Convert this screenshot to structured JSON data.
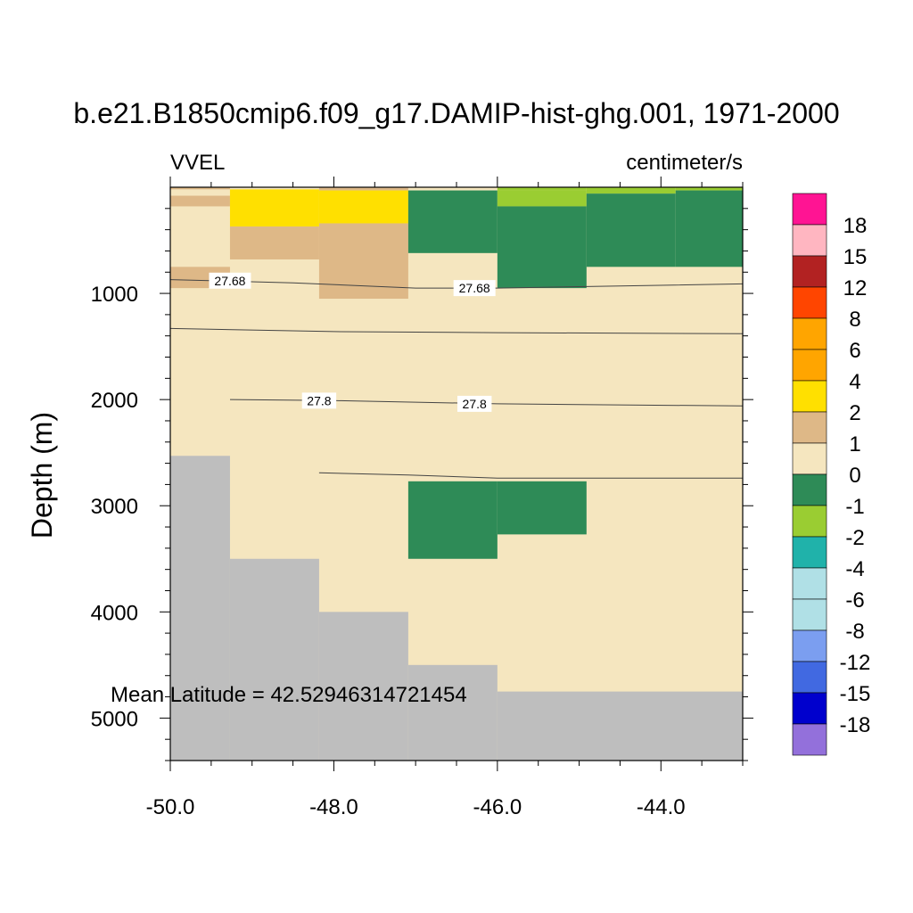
{
  "chart_data": {
    "type": "heatmap",
    "title": "b.e21.B1850cmip6.f09_g17.DAMIP-hist-ghg.001, 1971-2000",
    "variable_label": "VVEL",
    "units_label": "centimeter/s",
    "ylabel": "Depth (m)",
    "xlabel": "",
    "annotation": "Mean Latitude = 42.52946314721454",
    "xlim": [
      -50.0,
      -43.0
    ],
    "ylim": [
      5400,
      0
    ],
    "y_reversed": true,
    "x_ticks": [
      {
        "value": -50.0,
        "label": "-50.0"
      },
      {
        "value": -48.0,
        "label": "-48.0"
      },
      {
        "value": -46.0,
        "label": "-46.0"
      },
      {
        "value": -44.0,
        "label": "-44.0"
      }
    ],
    "y_ticks": [
      {
        "value": 1000,
        "label": "1000"
      },
      {
        "value": 2000,
        "label": "2000"
      },
      {
        "value": 3000,
        "label": "3000"
      },
      {
        "value": 4000,
        "label": "4000"
      },
      {
        "value": 5000,
        "label": "5000"
      }
    ],
    "background_color": "#f5e6bf",
    "land_color": "#bebebe",
    "cells": [
      {
        "x0": -50.0,
        "x1": -49.27,
        "y0": 0,
        "y1": 20,
        "color": "#deb887"
      },
      {
        "x0": -50.0,
        "x1": -49.27,
        "y0": 80,
        "y1": 180,
        "color": "#deb887"
      },
      {
        "x0": -50.0,
        "x1": -49.27,
        "y0": 750,
        "y1": 950,
        "color": "#deb887"
      },
      {
        "x0": -49.27,
        "x1": -48.18,
        "y0": 20,
        "y1": 370,
        "color": "#ffe000"
      },
      {
        "x0": -49.27,
        "x1": -48.18,
        "y0": 370,
        "y1": 680,
        "color": "#deb887"
      },
      {
        "x0": -48.18,
        "x1": -47.09,
        "y0": 0,
        "y1": 30,
        "color": "#deb887"
      },
      {
        "x0": -48.18,
        "x1": -47.09,
        "y0": 30,
        "y1": 340,
        "color": "#ffe000"
      },
      {
        "x0": -48.18,
        "x1": -47.09,
        "y0": 340,
        "y1": 1050,
        "color": "#deb887"
      },
      {
        "x0": -47.09,
        "x1": -46.0,
        "y0": 30,
        "y1": 620,
        "color": "#2e8b57"
      },
      {
        "x0": -46.0,
        "x1": -44.91,
        "y0": 0,
        "y1": 30,
        "color": "#9acd32"
      },
      {
        "x0": -46.0,
        "x1": -44.91,
        "y0": 30,
        "y1": 180,
        "color": "#9acd32"
      },
      {
        "x0": -46.0,
        "x1": -44.91,
        "y0": 180,
        "y1": 950,
        "color": "#2e8b57"
      },
      {
        "x0": -44.91,
        "x1": -43.82,
        "y0": 0,
        "y1": 60,
        "color": "#9acd32"
      },
      {
        "x0": -44.91,
        "x1": -43.82,
        "y0": 60,
        "y1": 750,
        "color": "#2e8b57"
      },
      {
        "x0": -43.82,
        "x1": -43.0,
        "y0": 0,
        "y1": 30,
        "color": "#9acd32"
      },
      {
        "x0": -43.82,
        "x1": -43.0,
        "y0": 30,
        "y1": 750,
        "color": "#2e8b57"
      },
      {
        "x0": -47.09,
        "x1": -46.0,
        "y0": 2770,
        "y1": 3500,
        "color": "#2e8b57"
      },
      {
        "x0": -46.0,
        "x1": -44.91,
        "y0": 2770,
        "y1": 3270,
        "color": "#2e8b57"
      }
    ],
    "land_cells": [
      {
        "x0": -50.0,
        "x1": -49.27,
        "y0": 2530,
        "y1": 5400
      },
      {
        "x0": -49.27,
        "x1": -48.18,
        "y0": 3500,
        "y1": 5400
      },
      {
        "x0": -48.18,
        "x1": -47.09,
        "y0": 4000,
        "y1": 5400
      },
      {
        "x0": -47.09,
        "x1": -46.0,
        "y0": 4500,
        "y1": 5400
      },
      {
        "x0": -46.0,
        "x1": -43.0,
        "y0": 4750,
        "y1": 5400
      }
    ],
    "contours": [
      {
        "label": "27.68",
        "points": [
          [
            -50.0,
            870
          ],
          [
            -48.5,
            900
          ],
          [
            -47.0,
            950
          ],
          [
            -46.0,
            950
          ],
          [
            -44.5,
            930
          ],
          [
            -43.0,
            910
          ]
        ],
        "label_positions": [
          [
            -49.27,
            880
          ],
          [
            -46.28,
            950
          ]
        ]
      },
      {
        "label": "",
        "points": [
          [
            -50.0,
            1330
          ],
          [
            -48.0,
            1360
          ],
          [
            -46.0,
            1370
          ],
          [
            -43.0,
            1380
          ]
        ],
        "label_positions": []
      },
      {
        "label": "27.8",
        "points": [
          [
            -49.27,
            2000
          ],
          [
            -48.0,
            2010
          ],
          [
            -46.0,
            2040
          ],
          [
            -43.0,
            2060
          ]
        ],
        "label_positions": [
          [
            -48.18,
            2010
          ],
          [
            -46.28,
            2040
          ]
        ]
      },
      {
        "label": "",
        "points": [
          [
            -48.18,
            2690
          ],
          [
            -47.09,
            2710
          ],
          [
            -46.0,
            2740
          ],
          [
            -43.0,
            2740
          ]
        ],
        "label_positions": []
      }
    ],
    "colorbar": {
      "colors": [
        "#ff1493",
        "#ffb6c1",
        "#b22222",
        "#ff4500",
        "#ffa500",
        "#ffa500",
        "#ffe000",
        "#deb887",
        "#f5e6bf",
        "#2e8b57",
        "#9acd32",
        "#20b2aa",
        "#b0e0e6",
        "#b0e0e6",
        "#7b9ef0",
        "#4169e1",
        "#0000cd",
        "#9370db"
      ],
      "labels": [
        "18",
        "15",
        "12",
        "8",
        "6",
        "4",
        "2",
        "1",
        "0",
        "-1",
        "-2",
        "-4",
        "-6",
        "-8",
        "-12",
        "-15",
        "-18"
      ]
    }
  }
}
